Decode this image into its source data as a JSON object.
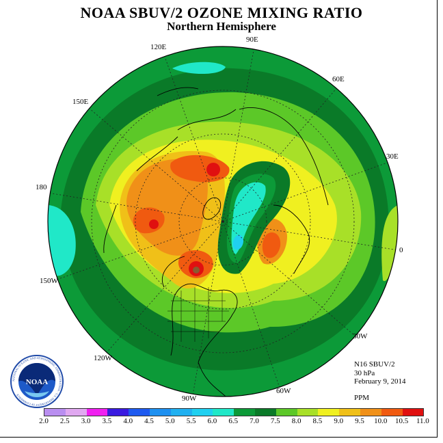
{
  "title": "NOAA SBUV/2 OZONE MIXING RATIO",
  "subtitle": "Northern Hemisphere",
  "longitude_labels": {
    "e90": "90E",
    "e120": "120E",
    "e60": "60E",
    "e150": "150E",
    "e30": "30E",
    "d180": "180",
    "d0": "0",
    "w150": "150W",
    "w30": "30W",
    "w120": "120W",
    "w60": "60W",
    "w90": "90W"
  },
  "info": {
    "instrument": "N16 SBUV/2",
    "level": "30 hPa",
    "date": "February 9, 2014",
    "units": "PPM"
  },
  "logo": {
    "text": "NOAA",
    "ring_text": "NATIONAL OCEANIC AND ATMOSPHERIC ADMINISTRATION · U.S. DEPARTMENT OF COMMERCE"
  },
  "colorbar": {
    "tick_labels": [
      "2.0",
      "2.5",
      "3.0",
      "3.5",
      "4.0",
      "4.5",
      "5.0",
      "5.5",
      "6.0",
      "6.5",
      "7.0",
      "7.5",
      "8.0",
      "8.5",
      "9.0",
      "9.5",
      "10.0",
      "10.5",
      "11.0"
    ],
    "colors": [
      "#b98ef0",
      "#e0a8f0",
      "#f020f0",
      "#3a1ae0",
      "#1e5af0",
      "#1e90f0",
      "#20b0f0",
      "#20d0f0",
      "#20e8c8",
      "#0c9a38",
      "#0a7a28",
      "#5cc828",
      "#a8e028",
      "#f0f020",
      "#f0c018",
      "#f09018",
      "#f05a10",
      "#e01010",
      "#8a5a30"
    ]
  }
}
